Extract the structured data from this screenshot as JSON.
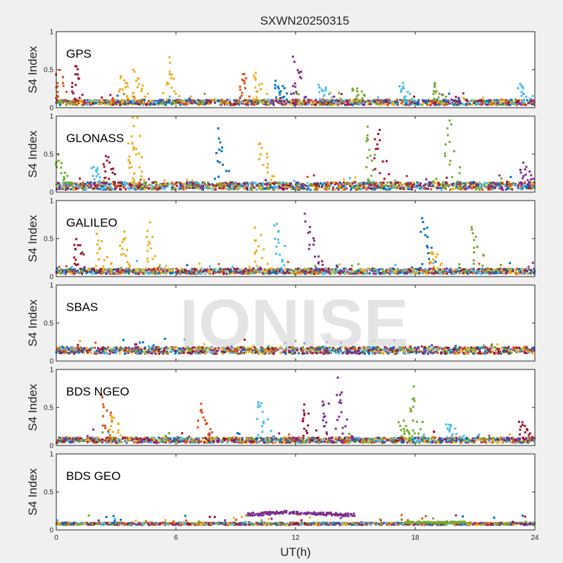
{
  "figure": {
    "title": "SXWN20250315",
    "xlabel": "UT(h)",
    "ylabel": "S4 Index",
    "watermark": "IONISE",
    "background": "#f0f0f0",
    "axes_background": "#ffffff"
  },
  "chart_data": {
    "type": "scatter",
    "title": "SXWN20250315",
    "xlabel": "UT(h)",
    "ylabel": "S4 Index",
    "xlim": [
      0,
      24
    ],
    "ylim": [
      0,
      1
    ],
    "xticks": [
      0,
      6,
      12,
      18,
      24
    ],
    "yticks": [
      0,
      0.5,
      1
    ],
    "grid": false,
    "legend": "none",
    "colors": [
      "#0072BD",
      "#D95319",
      "#EDB120",
      "#7E2F8E",
      "#77AC30",
      "#4DBEEE",
      "#A2142F"
    ],
    "panels": [
      {
        "label": "GPS",
        "baseline": 0.07,
        "noise": 0.035,
        "spikes": [
          [
            0.3,
            0.45,
            1
          ],
          [
            1.1,
            0.55,
            6
          ],
          [
            3.5,
            0.4,
            2
          ],
          [
            4.2,
            0.45,
            2
          ],
          [
            5.8,
            0.6,
            2
          ],
          [
            9.5,
            0.45,
            1
          ],
          [
            10.2,
            0.45,
            2
          ],
          [
            11.3,
            0.35,
            0
          ],
          [
            12.2,
            0.62,
            3
          ],
          [
            13.5,
            0.3,
            5
          ],
          [
            15.2,
            0.28,
            4
          ],
          [
            17.5,
            0.3,
            5
          ],
          [
            19.2,
            0.3,
            4
          ],
          [
            23.5,
            0.32,
            5
          ]
        ]
      },
      {
        "label": "GLONASS",
        "baseline": 0.08,
        "noise": 0.05,
        "spikes": [
          [
            0.3,
            0.45,
            4
          ],
          [
            2.1,
            0.35,
            5
          ],
          [
            2.7,
            0.5,
            6
          ],
          [
            3.9,
            0.65,
            2
          ],
          [
            4.1,
            0.95,
            2
          ],
          [
            8.3,
            0.75,
            0
          ],
          [
            10.5,
            0.65,
            2
          ],
          [
            15.9,
            0.85,
            4
          ],
          [
            16.3,
            0.8,
            6
          ],
          [
            19.8,
            0.9,
            4
          ],
          [
            23.6,
            0.35,
            3
          ]
        ]
      },
      {
        "label": "GALILEO",
        "baseline": 0.07,
        "noise": 0.035,
        "spikes": [
          [
            1.2,
            0.5,
            6
          ],
          [
            2.3,
            0.55,
            2
          ],
          [
            3.5,
            0.6,
            2
          ],
          [
            4.8,
            0.65,
            2
          ],
          [
            10.3,
            0.62,
            2
          ],
          [
            11.2,
            0.7,
            5
          ],
          [
            12.8,
            0.75,
            3
          ],
          [
            18.6,
            0.75,
            0
          ],
          [
            19.1,
            0.35,
            2
          ],
          [
            21.1,
            0.62,
            4
          ]
        ]
      },
      {
        "label": "SBAS",
        "baseline": 0.14,
        "noise": 0.045,
        "spikes": []
      },
      {
        "label": "BDS NGEO",
        "baseline": 0.07,
        "noise": 0.035,
        "spikes": [
          [
            2.6,
            0.62,
            1
          ],
          [
            3.0,
            0.4,
            2
          ],
          [
            7.4,
            0.5,
            1
          ],
          [
            10.4,
            0.6,
            5
          ],
          [
            12.6,
            0.5,
            6
          ],
          [
            13.6,
            0.6,
            3
          ],
          [
            14.3,
            0.8,
            3
          ],
          [
            17.5,
            0.3,
            4
          ],
          [
            18.1,
            0.7,
            4
          ],
          [
            19.9,
            0.3,
            5
          ],
          [
            23.5,
            0.3,
            6
          ]
        ]
      },
      {
        "label": "BDS GEO",
        "baseline": 0.08,
        "noise": 0.015,
        "spikes": []
      }
    ]
  }
}
